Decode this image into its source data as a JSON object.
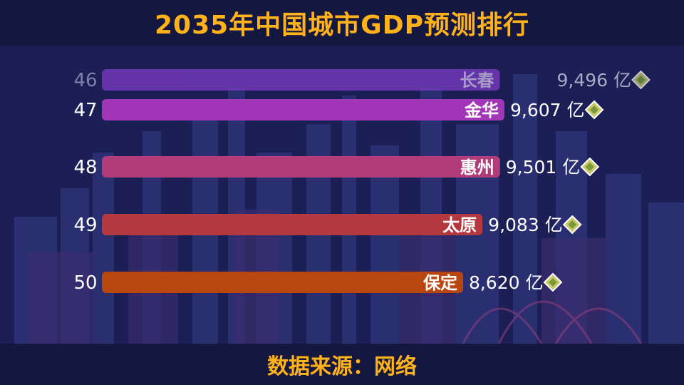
{
  "header": {
    "title": "2035年中国城市GDP预测排行"
  },
  "footer": {
    "source": "数据来源：网络"
  },
  "chart_data": {
    "type": "bar",
    "orientation": "horizontal",
    "title": "2035年中国城市GDP预测排行",
    "unit": "亿",
    "rows": [
      {
        "rank": "46",
        "city": "长春",
        "value": 9496,
        "value_label": "9,496 亿",
        "color": "#7e3cc6",
        "faded": true
      },
      {
        "rank": "47",
        "city": "金华",
        "value": 9607,
        "value_label": "9,607 亿",
        "color": "#a336b8",
        "faded": false
      },
      {
        "rank": "48",
        "city": "惠州",
        "value": 9501,
        "value_label": "9,501 亿",
        "color": "#b23b7a",
        "faded": false
      },
      {
        "rank": "49",
        "city": "太原",
        "value": 9083,
        "value_label": "9,083 亿",
        "color": "#b5383e",
        "faded": false
      },
      {
        "rank": "50",
        "city": "保定",
        "value": 8620,
        "value_label": "8,620 亿",
        "color": "#b9460f",
        "faded": false
      }
    ],
    "legend": "none",
    "grid": false
  }
}
